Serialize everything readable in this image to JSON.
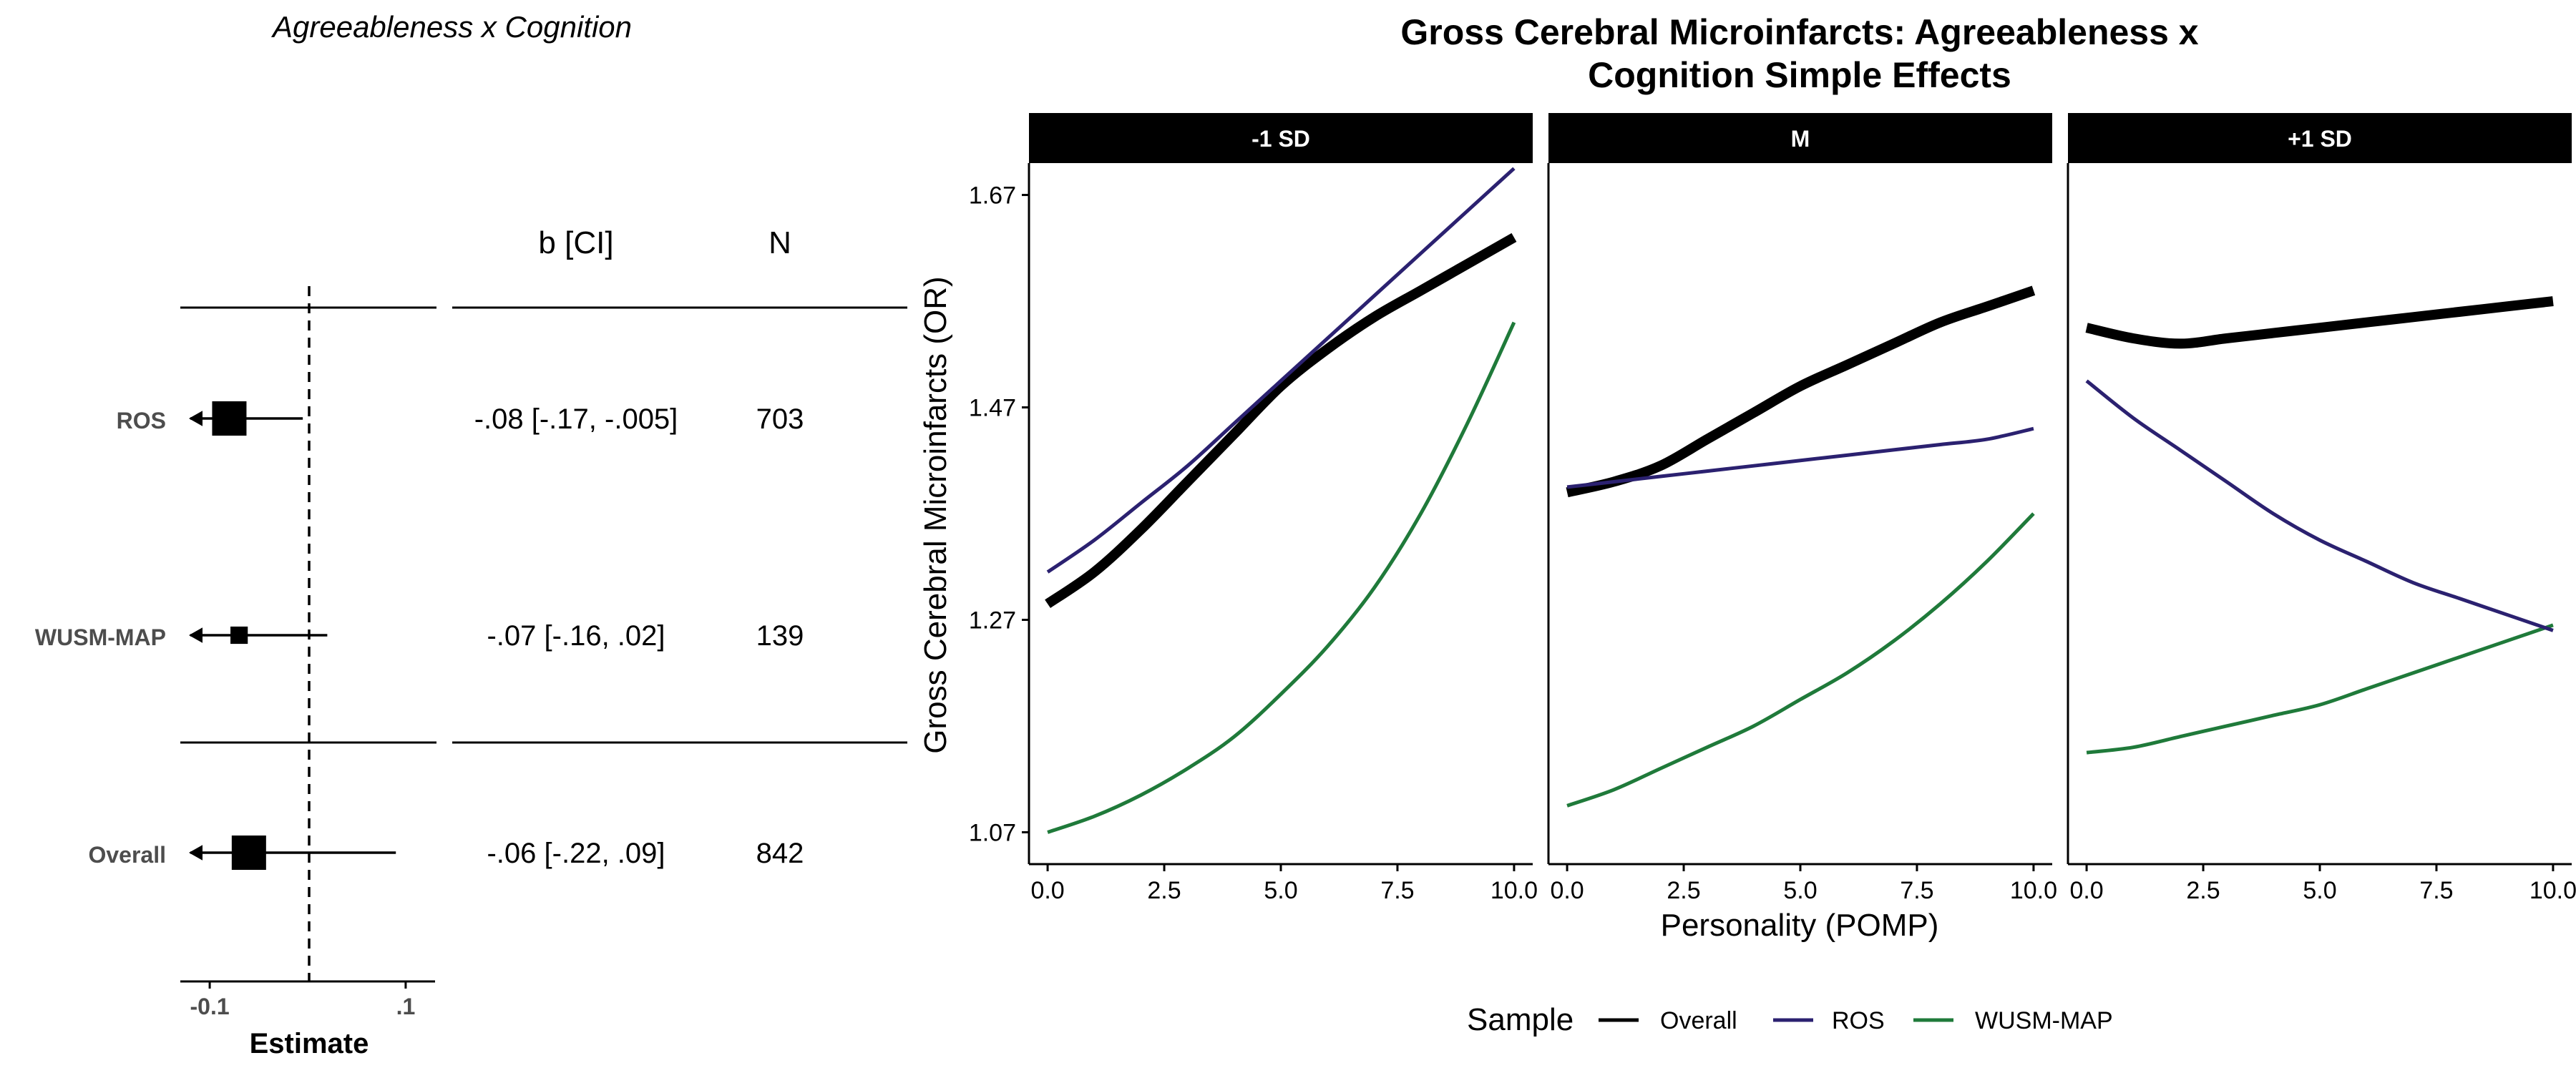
{
  "chart_data": [
    {
      "type": "forest",
      "title": "Agreeableness x Cognition",
      "xlabel": "Estimate",
      "xlim": [
        -0.13,
        0.13
      ],
      "x_ticks": [
        -0.1,
        0.1
      ],
      "x_tick_labels": [
        "-0.1",
        ".1"
      ],
      "reference_line": 0,
      "column_headers": [
        "b [CI]",
        "N"
      ],
      "rows": [
        {
          "label": "ROS",
          "estimate": -0.08,
          "ci_low": -0.17,
          "ci_high": -0.005,
          "ci_text": "-.08 [-.17, -.005]",
          "n": "703",
          "weight": 1.0
        },
        {
          "label": "WUSM-MAP",
          "estimate": -0.07,
          "ci_low": -0.16,
          "ci_high": 0.02,
          "ci_text": "-.07 [-.16, .02]",
          "n": "139",
          "weight": 0.55
        },
        {
          "label": "Overall",
          "estimate": -0.06,
          "ci_low": -0.22,
          "ci_high": 0.09,
          "ci_text": "-.06 [-.22, .09]",
          "n": "842",
          "weight": 1.0
        }
      ]
    },
    {
      "type": "line",
      "title": "Gross Cerebral Microinfarcts: Agreeableness x Cognition Simple Effects",
      "title_lines": [
        "Gross Cerebral Microinfarcts: Agreeableness x",
        "Cognition Simple Effects"
      ],
      "xlabel": "Personality (POMP)",
      "ylabel": "Gross Cerebral Microinfarcts (OR)",
      "xlim": [
        -0.4,
        10.4
      ],
      "ylim": [
        1.04,
        1.7
      ],
      "x_ticks": [
        0,
        2.5,
        5,
        7.5,
        10
      ],
      "x_tick_labels": [
        "0.0",
        "2.5",
        "5.0",
        "7.5",
        "10.0"
      ],
      "y_ticks": [
        1.07,
        1.27,
        1.47,
        1.67
      ],
      "y_tick_labels": [
        "1.07",
        "1.27",
        "1.47",
        "1.67"
      ],
      "legend": {
        "title": "Sample",
        "position": "bottom",
        "items": [
          "Overall",
          "ROS",
          "WUSM-MAP"
        ]
      },
      "series_colors": {
        "Overall": "#000000",
        "ROS": "#2b2170",
        "WUSM-MAP": "#1f7a3a"
      },
      "x": [
        0,
        1,
        2,
        3,
        4,
        5,
        6,
        7,
        8,
        9,
        10
      ],
      "panels": [
        {
          "label": "-1 SD",
          "series": [
            {
              "name": "Overall",
              "values": [
                1.285,
                1.315,
                1.355,
                1.4,
                1.445,
                1.49,
                1.525,
                1.555,
                1.58,
                1.605,
                1.63
              ]
            },
            {
              "name": "ROS",
              "values": [
                1.315,
                1.345,
                1.38,
                1.415,
                1.455,
                1.495,
                1.535,
                1.575,
                1.615,
                1.655,
                1.695
              ]
            },
            {
              "name": "WUSM-MAP",
              "values": [
                1.07,
                1.085,
                1.105,
                1.13,
                1.16,
                1.2,
                1.245,
                1.3,
                1.37,
                1.455,
                1.55
              ]
            }
          ]
        },
        {
          "label": "M",
          "series": [
            {
              "name": "Overall",
              "values": [
                1.39,
                1.4,
                1.415,
                1.44,
                1.465,
                1.49,
                1.51,
                1.53,
                1.55,
                1.565,
                1.58
              ]
            },
            {
              "name": "ROS",
              "values": [
                1.395,
                1.4,
                1.405,
                1.41,
                1.415,
                1.42,
                1.425,
                1.43,
                1.435,
                1.44,
                1.45
              ]
            },
            {
              "name": "WUSM-MAP",
              "values": [
                1.095,
                1.11,
                1.13,
                1.15,
                1.17,
                1.195,
                1.22,
                1.25,
                1.285,
                1.325,
                1.37
              ]
            }
          ]
        },
        {
          "label": "+1 SD",
          "series": [
            {
              "name": "Overall",
              "values": [
                1.545,
                1.535,
                1.53,
                1.535,
                1.54,
                1.545,
                1.55,
                1.555,
                1.56,
                1.565,
                1.57
              ]
            },
            {
              "name": "ROS",
              "values": [
                1.495,
                1.46,
                1.43,
                1.4,
                1.37,
                1.345,
                1.325,
                1.305,
                1.29,
                1.275,
                1.26
              ]
            },
            {
              "name": "WUSM-MAP",
              "values": [
                1.145,
                1.15,
                1.16,
                1.17,
                1.18,
                1.19,
                1.205,
                1.22,
                1.235,
                1.25,
                1.265
              ]
            }
          ]
        }
      ]
    }
  ]
}
